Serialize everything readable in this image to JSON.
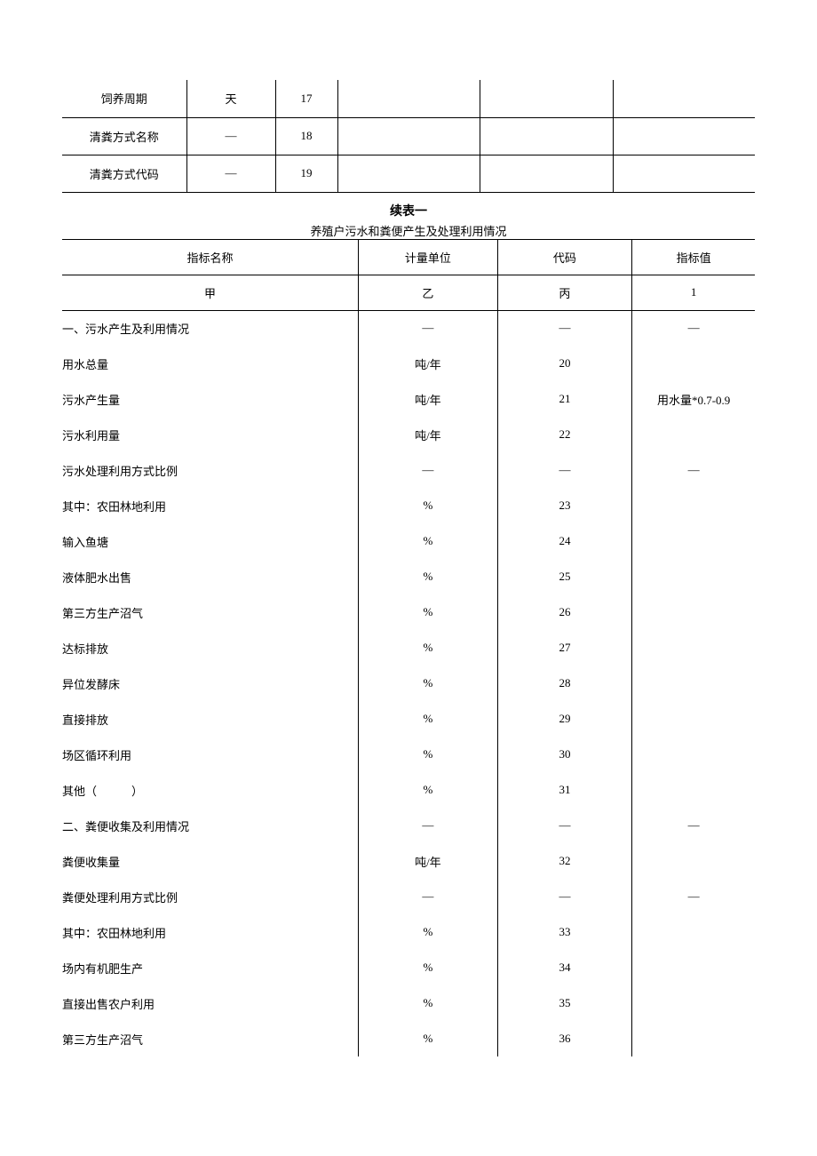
{
  "table1": {
    "rows": [
      {
        "name": "饲养周期",
        "unit": "天",
        "code": "17",
        "v1": "",
        "v2": "",
        "v3": ""
      },
      {
        "name": "清粪方式名称",
        "unit": "—",
        "code": "18",
        "v1": "",
        "v2": "",
        "v3": ""
      },
      {
        "name": "清粪方式代码",
        "unit": "—",
        "code": "19",
        "v1": "",
        "v2": "",
        "v3": ""
      }
    ]
  },
  "continuation_title": "续表一",
  "subtitle": "养殖户污水和粪便产生及处理利用情况",
  "table2": {
    "header": {
      "name": "指标名称",
      "unit": "计量单位",
      "code": "代码",
      "value": "指标值"
    },
    "subheader": {
      "name": "甲",
      "unit": "乙",
      "code": "丙",
      "value": "1"
    },
    "rows": [
      {
        "name": "一、污水产生及利用情况",
        "indent": "indent-0",
        "unit": "—",
        "code": "—",
        "value": "—"
      },
      {
        "name": "用水总量",
        "indent": "indent-1",
        "unit": "吨/年",
        "code": "20",
        "value": ""
      },
      {
        "name": "污水产生量",
        "indent": "indent-1",
        "unit": "吨/年",
        "code": "21",
        "value": "用水量*0.7-0.9"
      },
      {
        "name": "污水利用量",
        "indent": "indent-1",
        "unit": "吨/年",
        "code": "22",
        "value": ""
      },
      {
        "name": "污水处理利用方式比例",
        "indent": "indent-1",
        "unit": "—",
        "code": "—",
        "value": "—"
      },
      {
        "name": "其中：农田林地利用",
        "indent": "indent-2",
        "unit": "%",
        "code": "23",
        "value": ""
      },
      {
        "name": "输入鱼塘",
        "indent": "indent-2b",
        "unit": "%",
        "code": "24",
        "value": ""
      },
      {
        "name": "液体肥水出售",
        "indent": "indent-2b",
        "unit": "%",
        "code": "25",
        "value": ""
      },
      {
        "name": "第三方生产沼气",
        "indent": "indent-2b",
        "unit": "%",
        "code": "26",
        "value": ""
      },
      {
        "name": "达标排放",
        "indent": "indent-2b",
        "unit": "%",
        "code": "27",
        "value": ""
      },
      {
        "name": "异位发酵床",
        "indent": "indent-2b",
        "unit": "%",
        "code": "28",
        "value": ""
      },
      {
        "name": "直接排放",
        "indent": "indent-2b",
        "unit": "%",
        "code": "29",
        "value": ""
      },
      {
        "name": "场区循环利用",
        "indent": "indent-2b",
        "unit": "%",
        "code": "30",
        "value": ""
      },
      {
        "name": "其他（　　　）",
        "indent": "indent-2b",
        "unit": "%",
        "code": "31",
        "value": ""
      },
      {
        "name": "二、粪便收集及利用情况",
        "indent": "indent-0",
        "unit": "—",
        "code": "—",
        "value": "—"
      },
      {
        "name": "粪便收集量",
        "indent": "indent-1",
        "unit": "吨/年",
        "code": "32",
        "value": ""
      },
      {
        "name": "粪便处理利用方式比例",
        "indent": "indent-1",
        "unit": "—",
        "code": "—",
        "value": "—"
      },
      {
        "name": "其中：农田林地利用",
        "indent": "indent-2",
        "unit": "%",
        "code": "33",
        "value": ""
      },
      {
        "name": "场内有机肥生产",
        "indent": "indent-2b",
        "unit": "%",
        "code": "34",
        "value": ""
      },
      {
        "name": "直接出售农户利用",
        "indent": "indent-2b",
        "unit": "%",
        "code": "35",
        "value": ""
      },
      {
        "name": "第三方生产沼气",
        "indent": "indent-2b",
        "unit": "%",
        "code": "36",
        "value": ""
      }
    ]
  }
}
